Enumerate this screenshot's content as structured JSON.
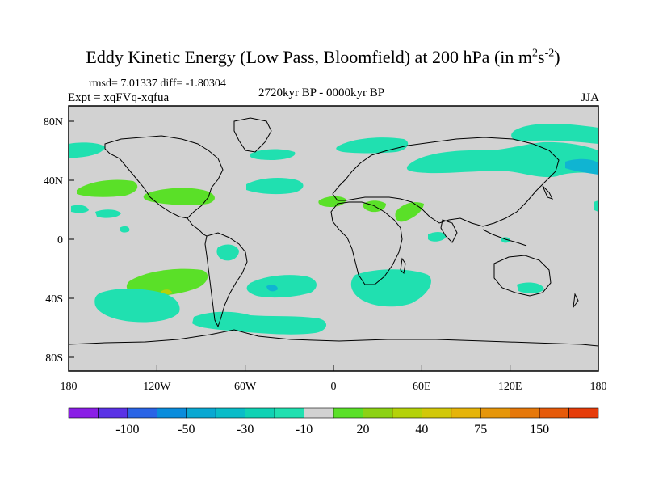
{
  "title": {
    "main": "Eddy Kinetic Energy (Low Pass, Bloomfield) at 200 hPa (in m",
    "sup1": "2",
    "mid": "s",
    "sup2": "-2",
    "end": ")"
  },
  "stats": "rmsd= 7.01337 diff= -1.80304",
  "experiment": "Expt = xqFVq-xqfua",
  "period": "2720kyr BP - 0000kyr BP",
  "season": "JJA",
  "lat_labels": [
    "80N",
    "40N",
    "0",
    "40S",
    "80S"
  ],
  "lon_labels": [
    "180",
    "120W",
    "60W",
    "0",
    "60E",
    "120E",
    "180"
  ],
  "colorbar": {
    "labels": [
      "-100",
      "-50",
      "-30",
      "-10",
      "20",
      "40",
      "75",
      "150"
    ],
    "colors": [
      "#8a1ee6",
      "#5a32e6",
      "#2a64e6",
      "#0a8cdc",
      "#0aa8d2",
      "#0abcc8",
      "#10d2b4",
      "#20e0b0",
      "#d2d2d2",
      "#5ae028",
      "#8cd214",
      "#b4d20a",
      "#d2c80a",
      "#e6b40a",
      "#e6960a",
      "#e6780a",
      "#e65a0a",
      "#e63c0a"
    ]
  },
  "colors": {
    "land_sea_background": "#d2d2d2",
    "cyan": "#20e0b0",
    "green": "#5ae028",
    "blue": "#10b4d2",
    "yellow": "#b4d20a"
  }
}
